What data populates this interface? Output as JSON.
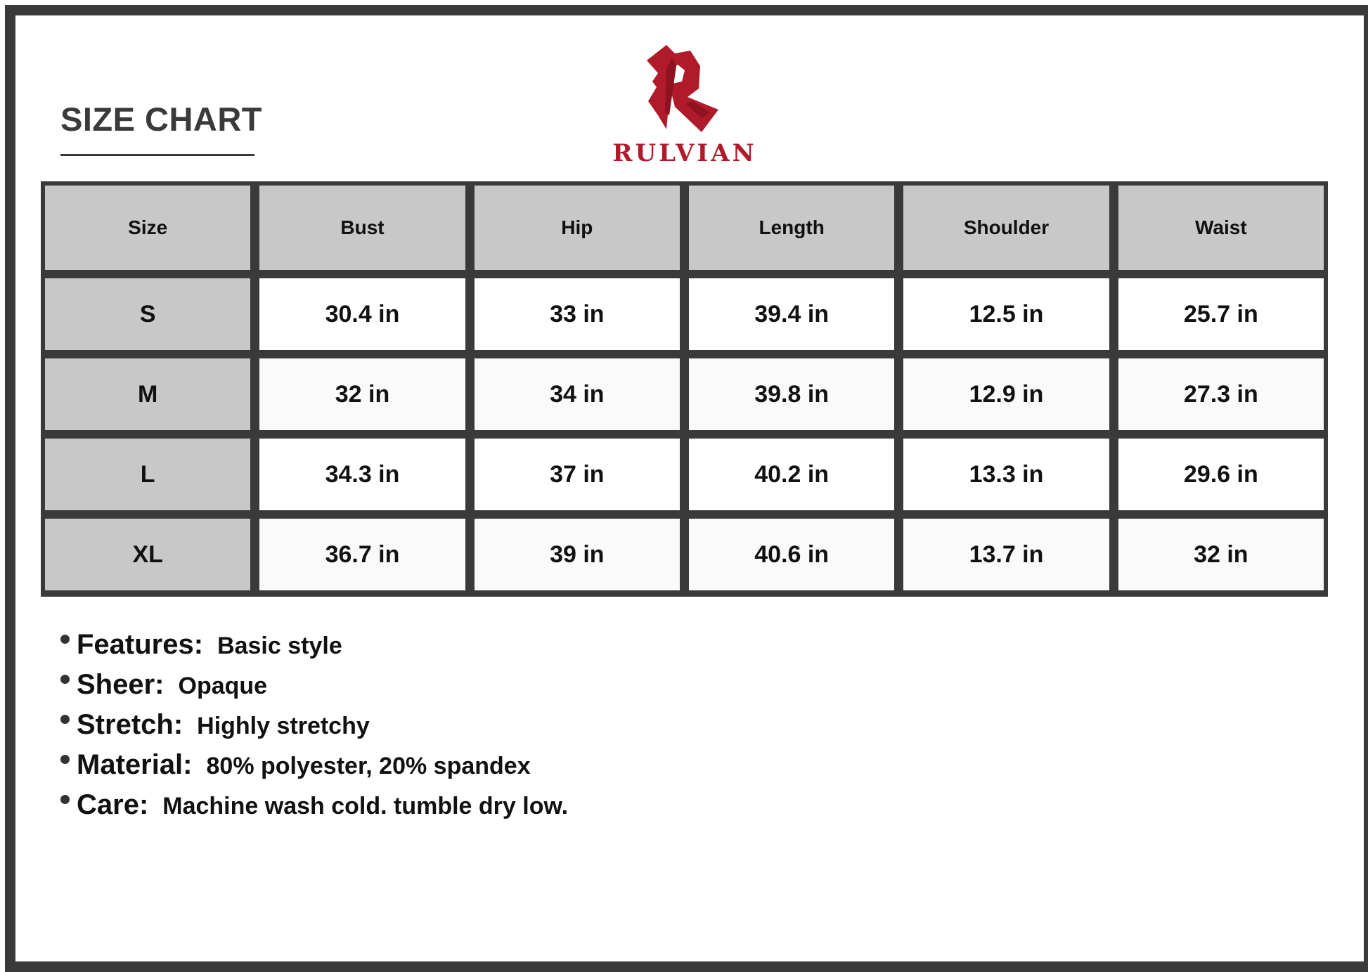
{
  "title": "SIZE CHART",
  "brand": {
    "name": "RULVIAN",
    "color": "#b01a2a"
  },
  "table": {
    "headers": [
      "Size",
      "Bust",
      "Hip",
      "Length",
      "Shoulder",
      "Waist"
    ],
    "rows": [
      [
        "S",
        "30.4 in",
        "33 in",
        "39.4 in",
        "12.5 in",
        "25.7 in"
      ],
      [
        "M",
        "32 in",
        "34 in",
        "39.8 in",
        "12.9 in",
        "27.3 in"
      ],
      [
        "L",
        "34.3 in",
        "37 in",
        "40.2 in",
        "13.3 in",
        "29.6 in"
      ],
      [
        "XL",
        "36.7 in",
        "39 in",
        "40.6 in",
        "13.7 in",
        "32 in"
      ]
    ]
  },
  "features": [
    {
      "label": "Features:",
      "value": "Basic style"
    },
    {
      "label": "Sheer:",
      "value": "Opaque"
    },
    {
      "label": "Stretch:",
      "value": "Highly stretchy"
    },
    {
      "label": "Material:",
      "value": "80% polyester, 20% spandex"
    },
    {
      "label": "Care:",
      "value": "Machine wash cold. tumble dry low."
    }
  ]
}
